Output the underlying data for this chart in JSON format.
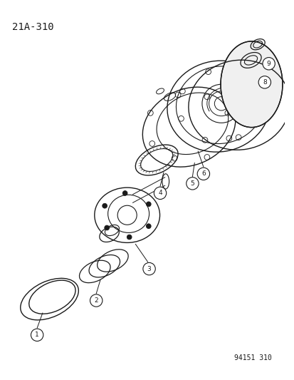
{
  "title": "21A-310",
  "footer": "94151 310",
  "bg_color": "#ffffff",
  "line_color": "#1a1a1a",
  "title_fontsize": 10,
  "footer_fontsize": 7,
  "fig_width": 4.14,
  "fig_height": 5.33,
  "dpi": 100
}
